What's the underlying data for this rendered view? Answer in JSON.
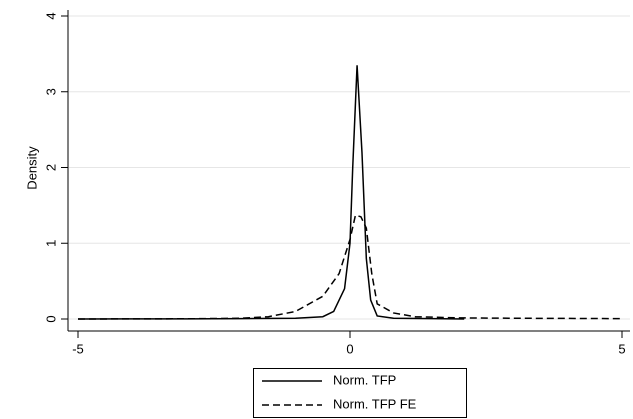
{
  "chart_data": {
    "type": "line",
    "y_label": "Density",
    "xlim": [
      -5,
      5
    ],
    "xticks": [
      -5,
      0,
      5
    ],
    "ylim": [
      0,
      4
    ],
    "yticks": [
      0,
      1,
      2,
      3,
      4
    ],
    "grid": true,
    "series": [
      {
        "name": "Norm. TFP",
        "color": "#000000",
        "dash": false,
        "x": [
          -5,
          -3,
          -2,
          -1,
          -0.5,
          -0.3,
          -0.1,
          0,
          0.05,
          0.13,
          0.22,
          0.3,
          0.38,
          0.5,
          0.8,
          1.5,
          2.1
        ],
        "values": [
          0,
          0.002,
          0.005,
          0.01,
          0.03,
          0.1,
          0.4,
          1.0,
          2.0,
          3.35,
          2.2,
          0.8,
          0.25,
          0.04,
          0.01,
          0.005,
          0
        ]
      },
      {
        "name": "Norm. TFP FE",
        "color": "#000000",
        "dash": true,
        "x": [
          -5,
          -3,
          -2,
          -1.5,
          -1,
          -0.5,
          -0.2,
          0,
          0.1,
          0.2,
          0.3,
          0.4,
          0.5,
          0.8,
          1.2,
          2,
          3,
          5
        ],
        "values": [
          0,
          0.003,
          0.01,
          0.03,
          0.1,
          0.3,
          0.6,
          1.05,
          1.37,
          1.35,
          1.2,
          0.6,
          0.2,
          0.08,
          0.03,
          0.015,
          0.01,
          0.005
        ]
      }
    ]
  }
}
